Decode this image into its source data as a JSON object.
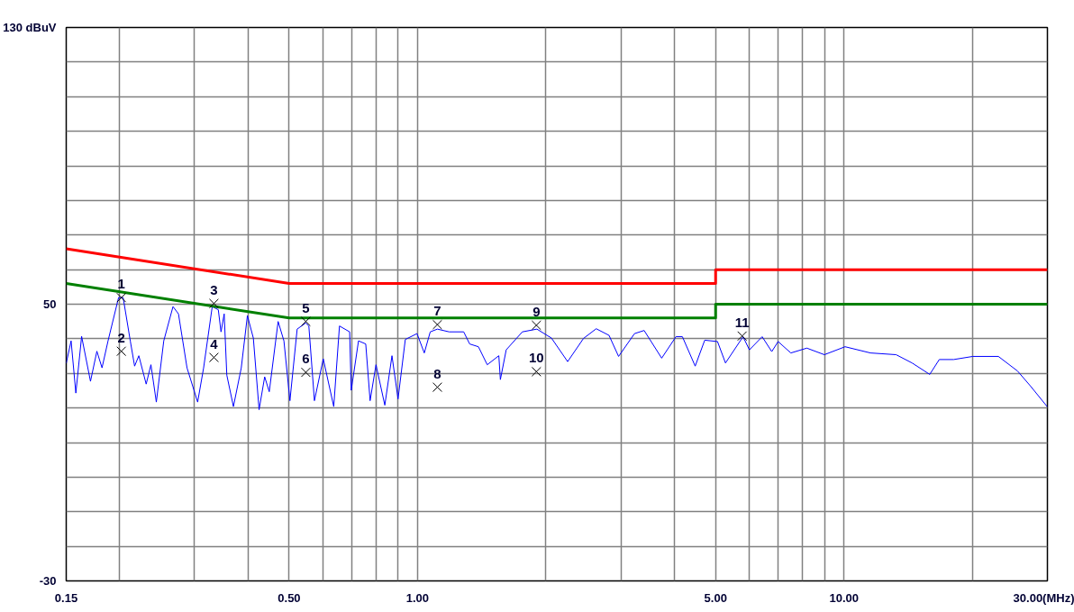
{
  "chart_data": {
    "type": "line",
    "log": "x",
    "grid": true,
    "xlim": [
      0.15,
      30
    ],
    "ylim": [
      -30,
      130
    ],
    "xticks": [
      0.15,
      {
        "value": 0.2,
        "label": null
      },
      {
        "value": 0.3,
        "label": null
      },
      {
        "value": 0.4,
        "label": null
      },
      {
        "value": 0.5,
        "label": "0.50"
      },
      {
        "value": 0.6,
        "label": null
      },
      {
        "value": 0.7,
        "label": null
      },
      {
        "value": 0.8,
        "label": null
      },
      {
        "value": 0.9,
        "label": null
      },
      {
        "value": 1,
        "label": "1.00"
      },
      {
        "value": 2,
        "label": null
      },
      {
        "value": 3,
        "label": null
      },
      {
        "value": 4,
        "label": null
      },
      {
        "value": 5,
        "label": "5.00"
      },
      {
        "value": 6,
        "label": null
      },
      {
        "value": 7,
        "label": null
      },
      {
        "value": 8,
        "label": null
      },
      {
        "value": 9,
        "label": null
      },
      {
        "value": 10,
        "label": "10.00"
      },
      {
        "value": 20,
        "label": null
      },
      {
        "value": 30,
        "label": "30.00(MHz)"
      }
    ],
    "yticks": [
      -30,
      {
        "value": -20,
        "label": null
      },
      {
        "value": -10,
        "label": null
      },
      {
        "value": 0,
        "label": null
      },
      {
        "value": 10,
        "label": null
      },
      {
        "value": 20,
        "label": null
      },
      {
        "value": 30,
        "label": null
      },
      {
        "value": 40,
        "label": null
      },
      50,
      {
        "value": 60,
        "label": null
      },
      {
        "value": 70,
        "label": null
      },
      {
        "value": 80,
        "label": null
      },
      {
        "value": 90,
        "label": null
      },
      {
        "value": 100,
        "label": null
      },
      {
        "value": 110,
        "label": null
      },
      {
        "value": 120,
        "label": null
      },
      {
        "value": 130,
        "label": "130 dBuV"
      }
    ],
    "series": [
      {
        "color": "#0000ff",
        "x": [
          0.15,
          0.154,
          0.158,
          0.163,
          0.171,
          0.177,
          0.182,
          0.188,
          0.199,
          0.204,
          0.212,
          0.217,
          0.222,
          0.231,
          0.237,
          0.244,
          0.254,
          0.267,
          0.275,
          0.288,
          0.305,
          0.315,
          0.33,
          0.341,
          0.346,
          0.352,
          0.357,
          0.37,
          0.386,
          0.399,
          0.412,
          0.425,
          0.438,
          0.449,
          0.471,
          0.486,
          0.502,
          0.522,
          0.547,
          0.556,
          0.573,
          0.601,
          0.636,
          0.656,
          0.693,
          0.699,
          0.727,
          0.756,
          0.774,
          0.799,
          0.838,
          0.871,
          0.9,
          0.936,
          0.997,
          1.037,
          1.071,
          1.113,
          1.186,
          1.283,
          1.325,
          1.389,
          1.457,
          1.551,
          1.564,
          1.614,
          1.761,
          1.905,
          2.061,
          2.249,
          2.45,
          2.624,
          2.812,
          2.961,
          3.227,
          3.399,
          3.737,
          4.036,
          4.179,
          4.478,
          4.715,
          5.052,
          5.274,
          5.798,
          6.002,
          6.429,
          6.771,
          7.008,
          7.506,
          8.184,
          8.996,
          10.06,
          11.54,
          13.25,
          14.45,
          15.89,
          16.73,
          18.08,
          20.05,
          23.02,
          25.52,
          27.35,
          30
        ],
        "values": [
          32.9,
          39.4,
          24.3,
          40.7,
          27.7,
          36.4,
          31.6,
          39.4,
          51.9,
          51.9,
          39.4,
          32.1,
          35.1,
          26.9,
          32.5,
          21.7,
          39.4,
          49.3,
          47.2,
          31.6,
          21.7,
          31.6,
          49.3,
          48.4,
          42.0,
          47.2,
          29.5,
          20.4,
          31.6,
          46.7,
          40.2,
          19.5,
          29.0,
          24.7,
          45.0,
          39.4,
          22.1,
          42.8,
          44.6,
          43.7,
          22.1,
          34.2,
          20.4,
          43.7,
          42.0,
          25.1,
          39.4,
          38.5,
          22.1,
          32.5,
          20.8,
          35.1,
          22.6,
          39.8,
          41.5,
          35.9,
          42.0,
          42.8,
          42.0,
          42.0,
          38.5,
          37.7,
          32.5,
          35.1,
          28.2,
          36.8,
          42.0,
          42.8,
          40.2,
          33.4,
          40.1,
          42.9,
          41.0,
          34.9,
          41.5,
          42.4,
          34.4,
          40.6,
          40.6,
          32.1,
          39.6,
          39.2,
          33.0,
          40.6,
          36.8,
          40.6,
          36.3,
          39.2,
          35.9,
          37.3,
          35.4,
          37.7,
          35.9,
          35.4,
          33.0,
          29.7,
          34.0,
          34.0,
          34.9,
          34.9,
          30.7,
          26.4,
          20.3
        ]
      },
      {
        "color": "#ff0000",
        "x": [
          0.15,
          0.5,
          5,
          5,
          30
        ],
        "values": [
          66,
          56,
          56,
          60,
          60
        ]
      },
      {
        "color": "#008000",
        "x": [
          0.15,
          0.5,
          5,
          5,
          30
        ],
        "values": [
          56,
          46,
          46,
          50,
          50
        ]
      },
      {
        "type": "scatter",
        "marker": "cross",
        "color": "#000000",
        "x": [
          0.202,
          0.202,
          0.333,
          0.333,
          0.547,
          0.547,
          1.113,
          1.113,
          1.9,
          1.9,
          5.77
        ],
        "values": [
          51.9,
          36.4,
          50.2,
          34.6,
          45.0,
          30.3,
          44.1,
          26.0,
          43.9,
          30.5,
          40.8
        ]
      }
    ],
    "annotations": [
      {
        "text": "1",
        "x": 0.202,
        "y": 51.9
      },
      {
        "text": "2",
        "x": 0.202,
        "y": 36.4
      },
      {
        "text": "3",
        "x": 0.333,
        "y": 50.2
      },
      {
        "text": "4",
        "x": 0.333,
        "y": 34.6
      },
      {
        "text": "5",
        "x": 0.547,
        "y": 45.0
      },
      {
        "text": "6",
        "x": 0.547,
        "y": 30.3
      },
      {
        "text": "7",
        "x": 1.113,
        "y": 44.1
      },
      {
        "text": "8",
        "x": 1.113,
        "y": 26.0
      },
      {
        "text": "9",
        "x": 1.9,
        "y": 43.9
      },
      {
        "text": "10",
        "x": 1.9,
        "y": 30.5
      },
      {
        "text": "11",
        "x": 5.77,
        "y": 40.8
      }
    ]
  }
}
